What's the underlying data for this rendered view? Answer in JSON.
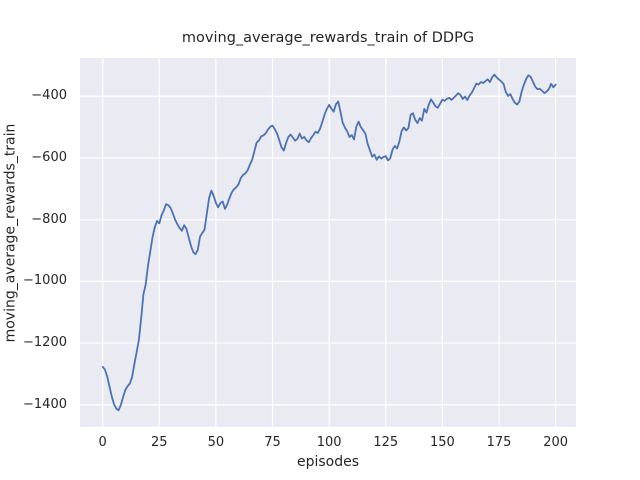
{
  "chart_data": {
    "type": "line",
    "title": "moving_average_rewards_train of DDPG",
    "xlabel": "episodes",
    "ylabel": "moving_average_rewards_train",
    "x_ticks": [
      0,
      25,
      50,
      75,
      100,
      125,
      150,
      175,
      200
    ],
    "x_tick_labels": [
      "0",
      "25",
      "50",
      "75",
      "100",
      "125",
      "150",
      "175",
      "200"
    ],
    "y_ticks": [
      -400,
      -600,
      -800,
      -1000,
      -1200,
      -1400
    ],
    "y_tick_labels": [
      "−400",
      "−600",
      "−800",
      "−1000",
      "−1200",
      "−1400"
    ],
    "xlim": [
      -10,
      209
    ],
    "ylim": [
      -1472,
      -276
    ],
    "grid": true,
    "legend_position": "none",
    "style": {
      "figure_background": "#ffffff",
      "axes_background": "#eaeaf2",
      "grid_color": "#ffffff",
      "line_color": "#4c72b0",
      "text_color": "#262626",
      "line_width": 1.8
    },
    "series": [
      {
        "name": "moving_average_rewards_train",
        "x_start": 0,
        "x_step": 1,
        "values": [
          -1277,
          -1286,
          -1308,
          -1340,
          -1372,
          -1398,
          -1412,
          -1418,
          -1401,
          -1376,
          -1352,
          -1340,
          -1331,
          -1310,
          -1268,
          -1230,
          -1190,
          -1120,
          -1042,
          -1010,
          -950,
          -905,
          -858,
          -825,
          -804,
          -812,
          -786,
          -770,
          -750,
          -753,
          -762,
          -780,
          -800,
          -815,
          -827,
          -836,
          -818,
          -830,
          -858,
          -885,
          -905,
          -912,
          -898,
          -855,
          -843,
          -832,
          -780,
          -730,
          -706,
          -722,
          -746,
          -760,
          -746,
          -741,
          -765,
          -751,
          -730,
          -712,
          -701,
          -695,
          -685,
          -665,
          -655,
          -650,
          -640,
          -622,
          -606,
          -578,
          -550,
          -543,
          -530,
          -527,
          -520,
          -508,
          -499,
          -495,
          -507,
          -521,
          -543,
          -566,
          -576,
          -551,
          -532,
          -524,
          -534,
          -544,
          -538,
          -521,
          -537,
          -532,
          -543,
          -549,
          -536,
          -526,
          -515,
          -519,
          -505,
          -483,
          -459,
          -441,
          -428,
          -440,
          -450,
          -426,
          -417,
          -450,
          -486,
          -502,
          -514,
          -532,
          -526,
          -540,
          -499,
          -482,
          -500,
          -510,
          -521,
          -554,
          -575,
          -596,
          -589,
          -606,
          -595,
          -602,
          -597,
          -594,
          -608,
          -601,
          -573,
          -561,
          -569,
          -547,
          -513,
          -501,
          -511,
          -503,
          -460,
          -455,
          -476,
          -487,
          -471,
          -479,
          -441,
          -453,
          -427,
          -410,
          -421,
          -433,
          -437,
          -424,
          -411,
          -415,
          -408,
          -405,
          -412,
          -405,
          -398,
          -390,
          -396,
          -409,
          -401,
          -412,
          -398,
          -388,
          -374,
          -359,
          -362,
          -354,
          -357,
          -351,
          -345,
          -354,
          -338,
          -330,
          -339,
          -346,
          -352,
          -360,
          -386,
          -399,
          -393,
          -409,
          -421,
          -427,
          -417,
          -385,
          -362,
          -344,
          -332,
          -337,
          -353,
          -369,
          -377,
          -376,
          -382,
          -390,
          -385,
          -377,
          -360,
          -371,
          -362
        ]
      }
    ]
  }
}
